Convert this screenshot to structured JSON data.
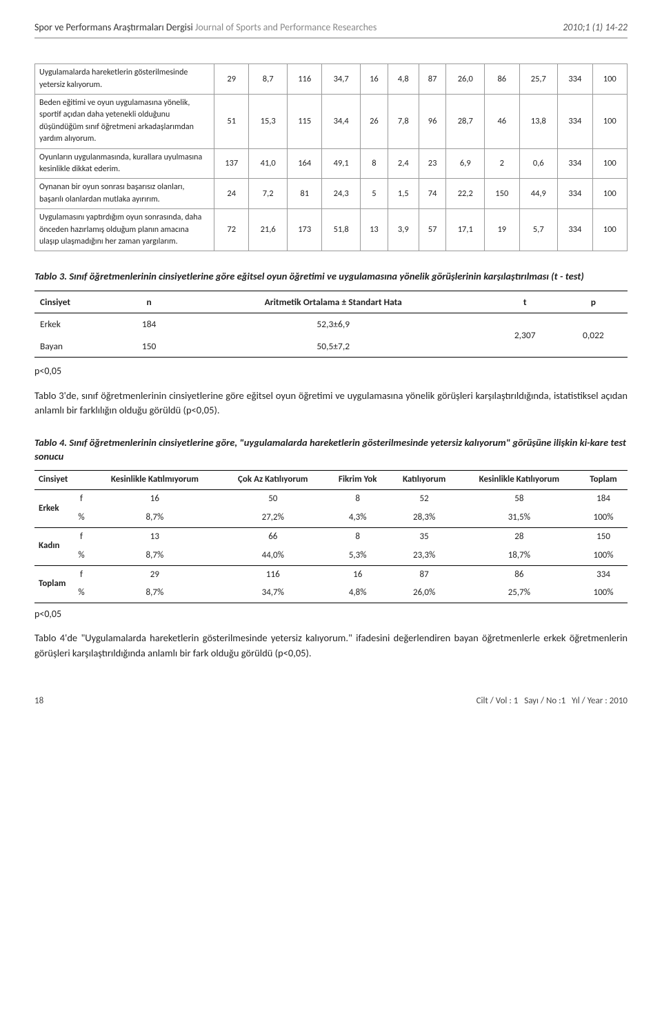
{
  "header": {
    "journal_tr": "Spor ve Performans Araştırmaları Dergisi",
    "journal_en": "Journal of Sports and Performance Researches",
    "volref": "2010;1 (1) 14-22"
  },
  "table1": {
    "rows": [
      {
        "label": "Uygulamalarda hareketlerin gösterilmesinde yetersiz kalıyorum.",
        "c": [
          "29",
          "8,7",
          "116",
          "34,7",
          "16",
          "4,8",
          "87",
          "26,0",
          "86",
          "25,7",
          "334",
          "100"
        ]
      },
      {
        "label": "Beden eğitimi ve oyun uygulamasına yönelik, sportif açıdan daha yetenekli olduğunu düşündüğüm sınıf öğretmeni arkadaşlarımdan yardım alıyorum.",
        "c": [
          "51",
          "15,3",
          "115",
          "34,4",
          "26",
          "7,8",
          "96",
          "28,7",
          "46",
          "13,8",
          "334",
          "100"
        ]
      },
      {
        "label": "Oyunların uygulanmasında, kurallara uyulmasına kesinlikle dikkat ederim.",
        "c": [
          "137",
          "41,0",
          "164",
          "49,1",
          "8",
          "2,4",
          "23",
          "6,9",
          "2",
          "0,6",
          "334",
          "100"
        ]
      },
      {
        "label": "Oynanan bir oyun sonrası başarısız olanları, başarılı olanlardan mutlaka ayırırım.",
        "c": [
          "24",
          "7,2",
          "81",
          "24,3",
          "5",
          "1,5",
          "74",
          "22,2",
          "150",
          "44,9",
          "334",
          "100"
        ]
      },
      {
        "label": "Uygulamasını yaptırdığım oyun sonrasında, daha önceden hazırlamış olduğum planın amacına ulaşıp ulaşmadığını her zaman yargılarım.",
        "c": [
          "72",
          "21,6",
          "173",
          "51,8",
          "13",
          "3,9",
          "57",
          "17,1",
          "19",
          "5,7",
          "334",
          "100"
        ]
      }
    ]
  },
  "table3": {
    "caption_num": "Tablo 3.",
    "caption_rest": " Sınıf öğretmenlerinin cinsiyetlerine göre eğitsel oyun öğretimi ve uygulamasına yönelik görüşlerinin karşılaştırılması (t - test)",
    "h_cins": "Cinsiyet",
    "h_n": "n",
    "h_ao": "Aritmetik Ortalama ± Standart Hata",
    "h_t": "t",
    "h_p": "p",
    "r1_g": "Erkek",
    "r1_n": "184",
    "r1_ao": "52,3±6,9",
    "r2_g": "Bayan",
    "r2_n": "150",
    "r2_ao": "50,5±7,2",
    "t": "2,307",
    "p": "0,022",
    "sig": "p<0,05",
    "para": "Tablo 3'de, sınıf öğretmenlerinin cinsiyetlerine göre eğitsel oyun öğretimi ve uygulamasına yönelik görüşleri karşılaştırıldığında, istatistiksel açıdan anlamlı bir farklılığın olduğu görüldü (p<0,05)."
  },
  "table4": {
    "caption_num": "Tablo 4.",
    "caption_rest": " Sınıf öğretmenlerinin cinsiyetlerine göre, \"uygulamalarda hareketlerin gösterilmesinde yetersiz kalıyorum\" görüşüne ilişkin ki-kare test sonucu",
    "h_cins": "Cinsiyet",
    "h_kk": "Kesinlikle Katılmıyorum",
    "h_ca": "Çok Az Katılıyorum",
    "h_fy": "Fikrim Yok",
    "h_k": "Katılıyorum",
    "h_kek": "Kesinlikle Katılıyorum",
    "h_tot": "Toplam",
    "g1": "Erkek",
    "g1_f": "f",
    "g1_f_v": [
      "16",
      "50",
      "8",
      "52",
      "58",
      "184"
    ],
    "g1_p": "%",
    "g1_p_v": [
      "8,7%",
      "27,2%",
      "4,3%",
      "28,3%",
      "31,5%",
      "100%"
    ],
    "g2": "Kadın",
    "g2_f": "f",
    "g2_f_v": [
      "13",
      "66",
      "8",
      "35",
      "28",
      "150"
    ],
    "g2_p": "%",
    "g2_p_v": [
      "8,7%",
      "44,0%",
      "5,3%",
      "23,3%",
      "18,7%",
      "100%"
    ],
    "g3": "Toplam",
    "g3_f": "f",
    "g3_f_v": [
      "29",
      "116",
      "16",
      "87",
      "86",
      "334"
    ],
    "g3_p": "%",
    "g3_p_v": [
      "8,7%",
      "34,7%",
      "4,8%",
      "26,0%",
      "25,7%",
      "100%"
    ],
    "sig": "p<0,05",
    "para": "Tablo 4'de \"Uygulamalarda hareketlerin gösterilmesinde yetersiz kalıyorum.\" ifadesini değerlendiren bayan öğretmenlerle erkek öğretmenlerin görüşleri karşılaştırıldığında anlamlı bir fark olduğu görüldü (p<0,05)."
  },
  "footer": {
    "page": "18",
    "cilt_lbl": "Cilt / Vol :",
    "cilt_v": "1",
    "sayi_lbl": "Sayı / No :",
    "sayi_v": "1",
    "yil_lbl": "Yıl / Year :",
    "yil_v": "2010"
  }
}
